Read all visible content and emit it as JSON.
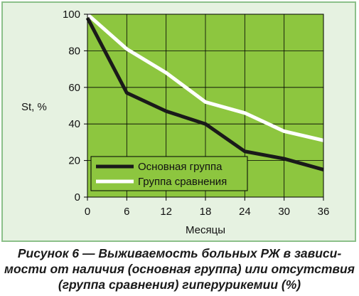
{
  "chart_data": {
    "type": "line",
    "x": [
      0,
      6,
      12,
      18,
      24,
      30,
      36
    ],
    "xticks": [
      "0",
      "6",
      "12",
      "18",
      "24",
      "30",
      "36"
    ],
    "yticks": [
      "0",
      "20",
      "40",
      "60",
      "80",
      "100"
    ],
    "xlabel": "Месяцы",
    "ylabel": "St, %",
    "xlim": [
      0,
      36
    ],
    "ylim": [
      0,
      100
    ],
    "grid": true,
    "legend_position": "bottom-left",
    "plot_background": "#8dc63f",
    "series": [
      {
        "name": "Основная группа",
        "color": "#1a1a1a",
        "values": [
          98,
          57,
          47,
          40,
          25,
          21,
          15
        ]
      },
      {
        "name": "Группа сравнения",
        "color": "#ffffff",
        "values": [
          100,
          81,
          68,
          52,
          46,
          36,
          31
        ]
      }
    ]
  },
  "caption": {
    "lines": [
      "Рисунок 6 — Выживаемость больных РЖ в зависи-",
      "мости от наличия (основная группа) или отсутствия",
      "(группа сравнения) гиперурикемии (%)"
    ]
  }
}
